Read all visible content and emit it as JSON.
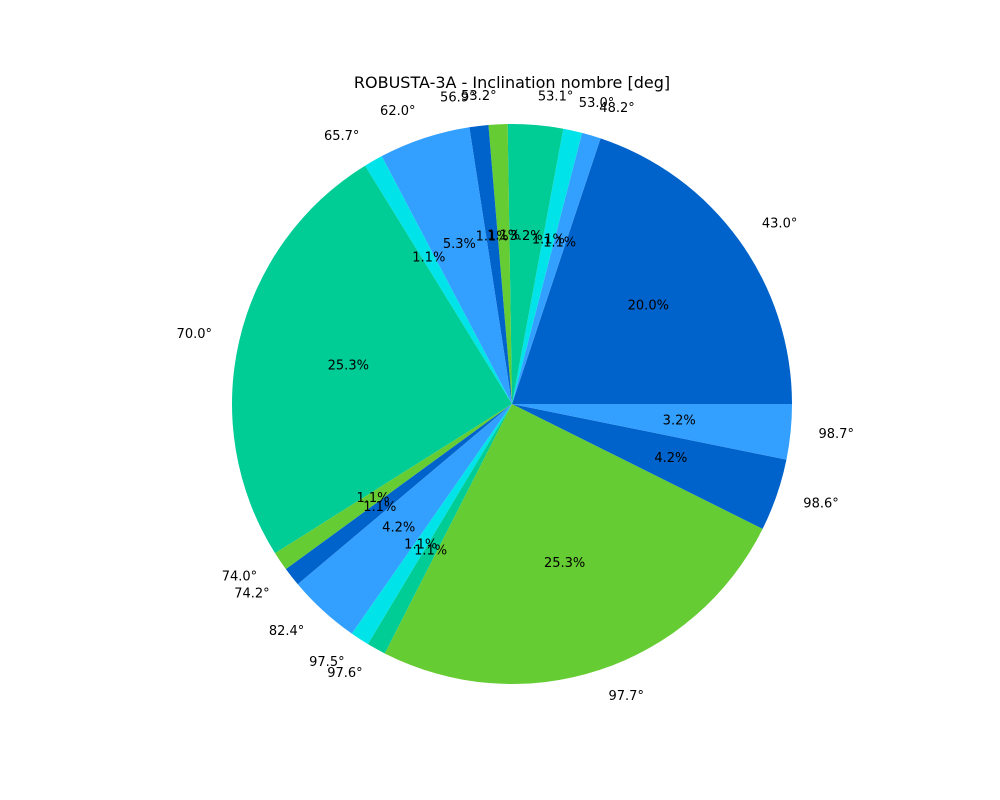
{
  "chart_data": {
    "type": "pie",
    "title": "ROBUSTA-3A - Inclination nombre [deg]",
    "slices": [
      {
        "label": "43.0°",
        "value": 20.0,
        "pct_label": "20.0%",
        "color": "#0063cc"
      },
      {
        "label": "48.2°",
        "value": 1.1,
        "pct_label": "1.1%",
        "color": "#339fff"
      },
      {
        "label": "53.0°",
        "value": 1.1,
        "pct_label": "1.1%",
        "color": "#00e3e8"
      },
      {
        "label": "53.1°",
        "value": 3.2,
        "pct_label": "3.2%",
        "color": "#00cc96"
      },
      {
        "label": "53.2°",
        "value": 1.1,
        "pct_label": "1.1%",
        "color": "#66cc33"
      },
      {
        "label": "56.9°",
        "value": 1.1,
        "pct_label": "1.1%",
        "color": "#0063cc"
      },
      {
        "label": "62.0°",
        "value": 5.3,
        "pct_label": "5.3%",
        "color": "#339fff"
      },
      {
        "label": "65.7°",
        "value": 1.1,
        "pct_label": "1.1%",
        "color": "#00e3e8"
      },
      {
        "label": "70.0°",
        "value": 25.3,
        "pct_label": "25.3%",
        "color": "#00cc96"
      },
      {
        "label": "74.0°",
        "value": 1.1,
        "pct_label": "1.1%",
        "color": "#66cc33"
      },
      {
        "label": "74.2°",
        "value": 1.1,
        "pct_label": "1.1%",
        "color": "#0063cc"
      },
      {
        "label": "82.4°",
        "value": 4.2,
        "pct_label": "4.2%",
        "color": "#339fff"
      },
      {
        "label": "97.5°",
        "value": 1.1,
        "pct_label": "1.1%",
        "color": "#00e3e8"
      },
      {
        "label": "97.6°",
        "value": 1.1,
        "pct_label": "1.1%",
        "color": "#00cc96"
      },
      {
        "label": "97.7°",
        "value": 25.3,
        "pct_label": "25.3%",
        "color": "#66cc33"
      },
      {
        "label": "98.6°",
        "value": 4.2,
        "pct_label": "4.2%",
        "color": "#0063cc"
      },
      {
        "label": "98.7°",
        "value": 3.2,
        "pct_label": "3.2%",
        "color": "#339fff"
      }
    ]
  }
}
